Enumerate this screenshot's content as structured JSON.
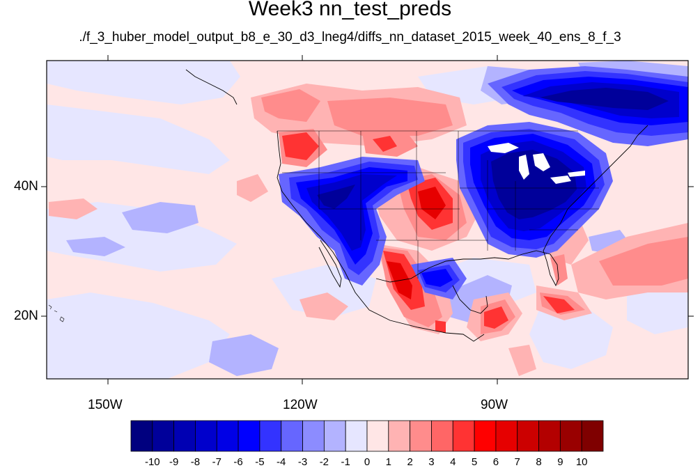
{
  "title": "Week3 nn_test_preds",
  "subtitle": "./f_3_huber_model_output_b8_e_30_d3_lneg4/diffs_nn_dataset_2015_week_40_ens_8_f_3",
  "map": {
    "region": "North America and adjacent Pacific/Atlantic",
    "lon_range": [
      -160,
      -60
    ],
    "lat_range": [
      10,
      60
    ],
    "lon_labels": [
      "150W",
      "120W",
      "90W"
    ],
    "lat_labels": [
      "40N",
      "20N"
    ]
  },
  "colorbar": {
    "labels": [
      "-10",
      "-9",
      "-8",
      "-7",
      "-6",
      "-5",
      "-4",
      "-3",
      "-2",
      "-1",
      "0",
      "1",
      "2",
      "3",
      "4",
      "5",
      "6",
      "7",
      "8",
      "9",
      "10"
    ],
    "colors": [
      "#00007f",
      "#00009a",
      "#0000b3",
      "#0000cc",
      "#0000e6",
      "#0000ff",
      "#3333ff",
      "#6666ff",
      "#8c8cff",
      "#b3b3ff",
      "#e6e6ff",
      "#ffe6e6",
      "#ffb3b3",
      "#ff8c8c",
      "#ff6666",
      "#ff3333",
      "#ff0000",
      "#e60000",
      "#cc0000",
      "#b30000",
      "#990000",
      "#7f0000"
    ]
  }
}
